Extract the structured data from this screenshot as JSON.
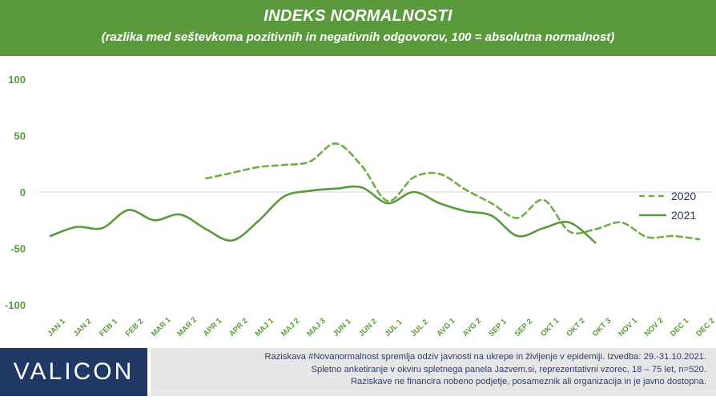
{
  "header": {
    "title": "INDEKS NORMALNOSTI",
    "subtitle": "(razlika med seštevkoma pozitivnih in negativnih odgovorov, 100 = absolutna normalnost)"
  },
  "chart_data": {
    "type": "line",
    "title": "INDEKS NORMALNOSTI",
    "subtitle": "(razlika med seštevkoma pozitivnih in negativnih odgovorov, 100 = absolutna normalnost)",
    "categories": [
      "JAN 1",
      "JAN 2",
      "FEB 1",
      "FEB 2",
      "MAR 1",
      "MAR 2",
      "APR 1",
      "APR 2",
      "MAJ 1",
      "MAJ 2",
      "MAJ 3",
      "JUN 1",
      "JUN 2",
      "JUL 1",
      "JUL 2",
      "AVG 1",
      "AVG 2",
      "SEP 1",
      "SEP 2",
      "OKT 1",
      "OKT 2",
      "OKT 3",
      "NOV 1",
      "NOV 2",
      "DEC 1",
      "DEC 2"
    ],
    "ylim": [
      -100,
      100
    ],
    "yticks": [
      100,
      50,
      0,
      -50,
      -100
    ],
    "grid": false,
    "legend_position": "right",
    "series": [
      {
        "name": "2020",
        "style": "dashed",
        "color": "#70ad47",
        "values": [
          null,
          null,
          null,
          null,
          null,
          null,
          12,
          17,
          22,
          24,
          27,
          43,
          23,
          -8,
          13,
          16,
          2,
          -10,
          -23,
          -7,
          -35,
          -33,
          -27,
          -40,
          -39,
          -42
        ]
      },
      {
        "name": "2021",
        "style": "solid",
        "color": "#5b9a3c",
        "values": [
          -39,
          -31,
          -32,
          -16,
          -25,
          -20,
          -33,
          -43,
          -26,
          -4,
          1,
          3,
          4,
          -10,
          0,
          -10,
          -17,
          -21,
          -39,
          -32,
          -27,
          -45,
          null,
          null,
          null,
          null
        ]
      }
    ]
  },
  "footer": {
    "logo": "VALICON",
    "notes": [
      "Raziskava #Novanormalnost spremlja odziv javnosti na ukrepe in življenje v epidemiji. Izvedba: 29.-31.10.2021.",
      "Spletno anketiranje v okviru spletnega panela Jazvem.si, reprezentativni vzorec, 18 – 75 let, n=520.",
      "Raziskave ne financira nobeno podjetje, posameznik ali organizacija in je javno dostopna."
    ]
  }
}
